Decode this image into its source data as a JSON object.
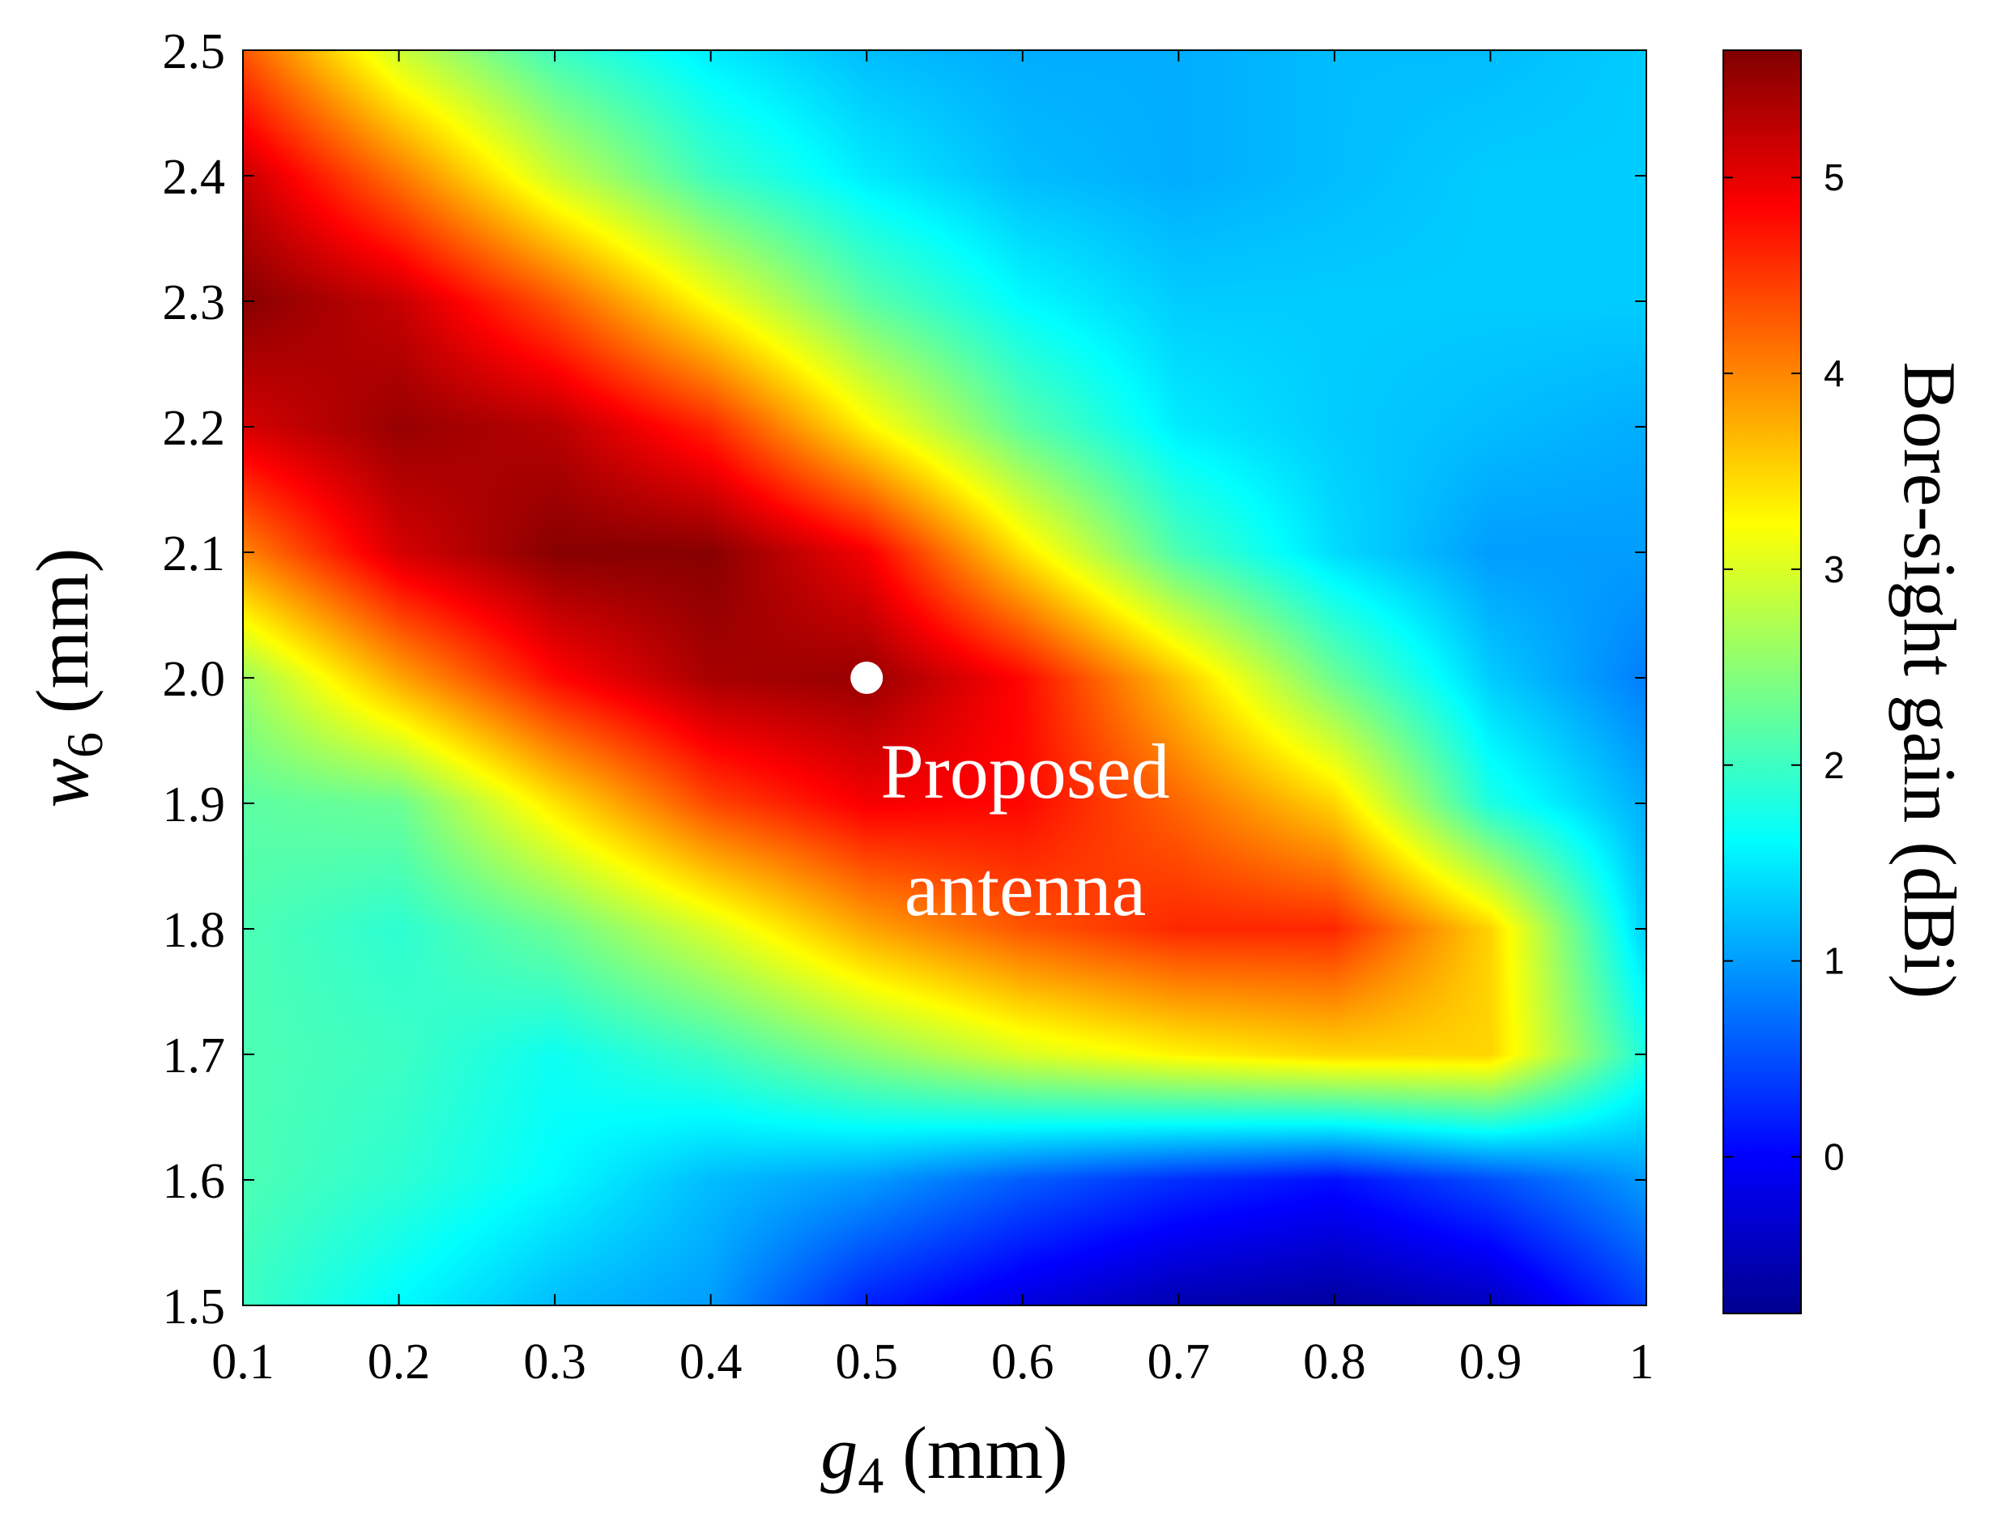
{
  "chart_data": {
    "type": "heatmap",
    "title": "",
    "xlabel": {
      "symbol": "g",
      "subscript": "4",
      "unit": " (mm)"
    },
    "ylabel": {
      "symbol": "w",
      "subscript": "6",
      "unit": " (mm)"
    },
    "xlim": [
      0.1,
      1.0
    ],
    "ylim": [
      1.5,
      2.5
    ],
    "x_ticks": [
      {
        "value": 0.1,
        "label": "0.1"
      },
      {
        "value": 0.2,
        "label": "0.2"
      },
      {
        "value": 0.3,
        "label": "0.3"
      },
      {
        "value": 0.4,
        "label": "0.4"
      },
      {
        "value": 0.5,
        "label": "0.5"
      },
      {
        "value": 0.6,
        "label": "0.6"
      },
      {
        "value": 0.7,
        "label": "0.7"
      },
      {
        "value": 0.8,
        "label": "0.8"
      },
      {
        "value": 0.9,
        "label": "0.9"
      },
      {
        "value": 1.0,
        "label": "1"
      }
    ],
    "y_ticks": [
      {
        "value": 1.5,
        "label": "1.5"
      },
      {
        "value": 1.6,
        "label": "1.6"
      },
      {
        "value": 1.7,
        "label": "1.7"
      },
      {
        "value": 1.8,
        "label": "1.8"
      },
      {
        "value": 1.9,
        "label": "1.9"
      },
      {
        "value": 2.0,
        "label": "2.0"
      },
      {
        "value": 2.1,
        "label": "2.1"
      },
      {
        "value": 2.2,
        "label": "2.2"
      },
      {
        "value": 2.3,
        "label": "2.3"
      },
      {
        "value": 2.4,
        "label": "2.4"
      },
      {
        "value": 2.5,
        "label": "2.5"
      }
    ],
    "x": [
      0.1,
      0.2,
      0.3,
      0.4,
      0.5,
      0.6,
      0.7,
      0.8,
      0.9,
      1.0
    ],
    "y": [
      1.5,
      1.6,
      1.7,
      1.8,
      1.9,
      2.0,
      2.1,
      2.2,
      2.3,
      2.4,
      2.5
    ],
    "z_rows_by_y": [
      [
        2.0,
        1.6,
        1.2,
        1.0,
        0.2,
        -0.2,
        -0.5,
        -0.6,
        -0.4,
        0.4
      ],
      [
        2.1,
        1.9,
        1.6,
        1.2,
        1.0,
        0.6,
        0.3,
        0.1,
        0.5,
        1.0
      ],
      [
        2.1,
        2.0,
        1.7,
        2.0,
        2.5,
        3.0,
        3.3,
        3.5,
        3.5,
        1.8
      ],
      [
        2.1,
        1.9,
        2.3,
        3.0,
        3.8,
        4.3,
        4.6,
        4.6,
        3.5,
        1.3
      ],
      [
        2.2,
        2.3,
        3.4,
        4.4,
        4.9,
        4.8,
        4.2,
        3.5,
        1.8,
        1.1
      ],
      [
        2.6,
        3.8,
        4.8,
        5.4,
        5.5,
        4.8,
        3.6,
        2.3,
        1.3,
        0.8
      ],
      [
        4.0,
        5.1,
        5.6,
        5.6,
        4.9,
        3.4,
        2.1,
        1.4,
        1.0,
        1.0
      ],
      [
        5.1,
        5.5,
        5.3,
        4.6,
        3.3,
        2.2,
        1.5,
        1.3,
        1.2,
        1.1
      ],
      [
        5.6,
        5.2,
        4.3,
        3.2,
        2.2,
        1.6,
        1.3,
        1.3,
        1.3,
        1.3
      ],
      [
        5.2,
        4.1,
        2.9,
        2.0,
        1.5,
        1.2,
        1.1,
        1.2,
        1.3,
        1.3
      ],
      [
        4.3,
        2.9,
        2.0,
        1.5,
        1.2,
        1.1,
        1.1,
        1.2,
        1.2,
        1.3
      ]
    ],
    "colorbar": {
      "label": "Bore-sight gain (dBi)",
      "min": -0.8,
      "max": 5.65,
      "colormap": "jet",
      "ticks": [
        {
          "value": 0,
          "label": "0"
        },
        {
          "value": 1,
          "label": "1"
        },
        {
          "value": 2,
          "label": "2"
        },
        {
          "value": 3,
          "label": "3"
        },
        {
          "value": 4,
          "label": "4"
        },
        {
          "value": 5,
          "label": "5"
        }
      ]
    },
    "marker": {
      "x": 0.5,
      "y": 2.0,
      "color": "#ffffff",
      "label_lines": [
        "Proposed",
        "antenna"
      ]
    }
  }
}
